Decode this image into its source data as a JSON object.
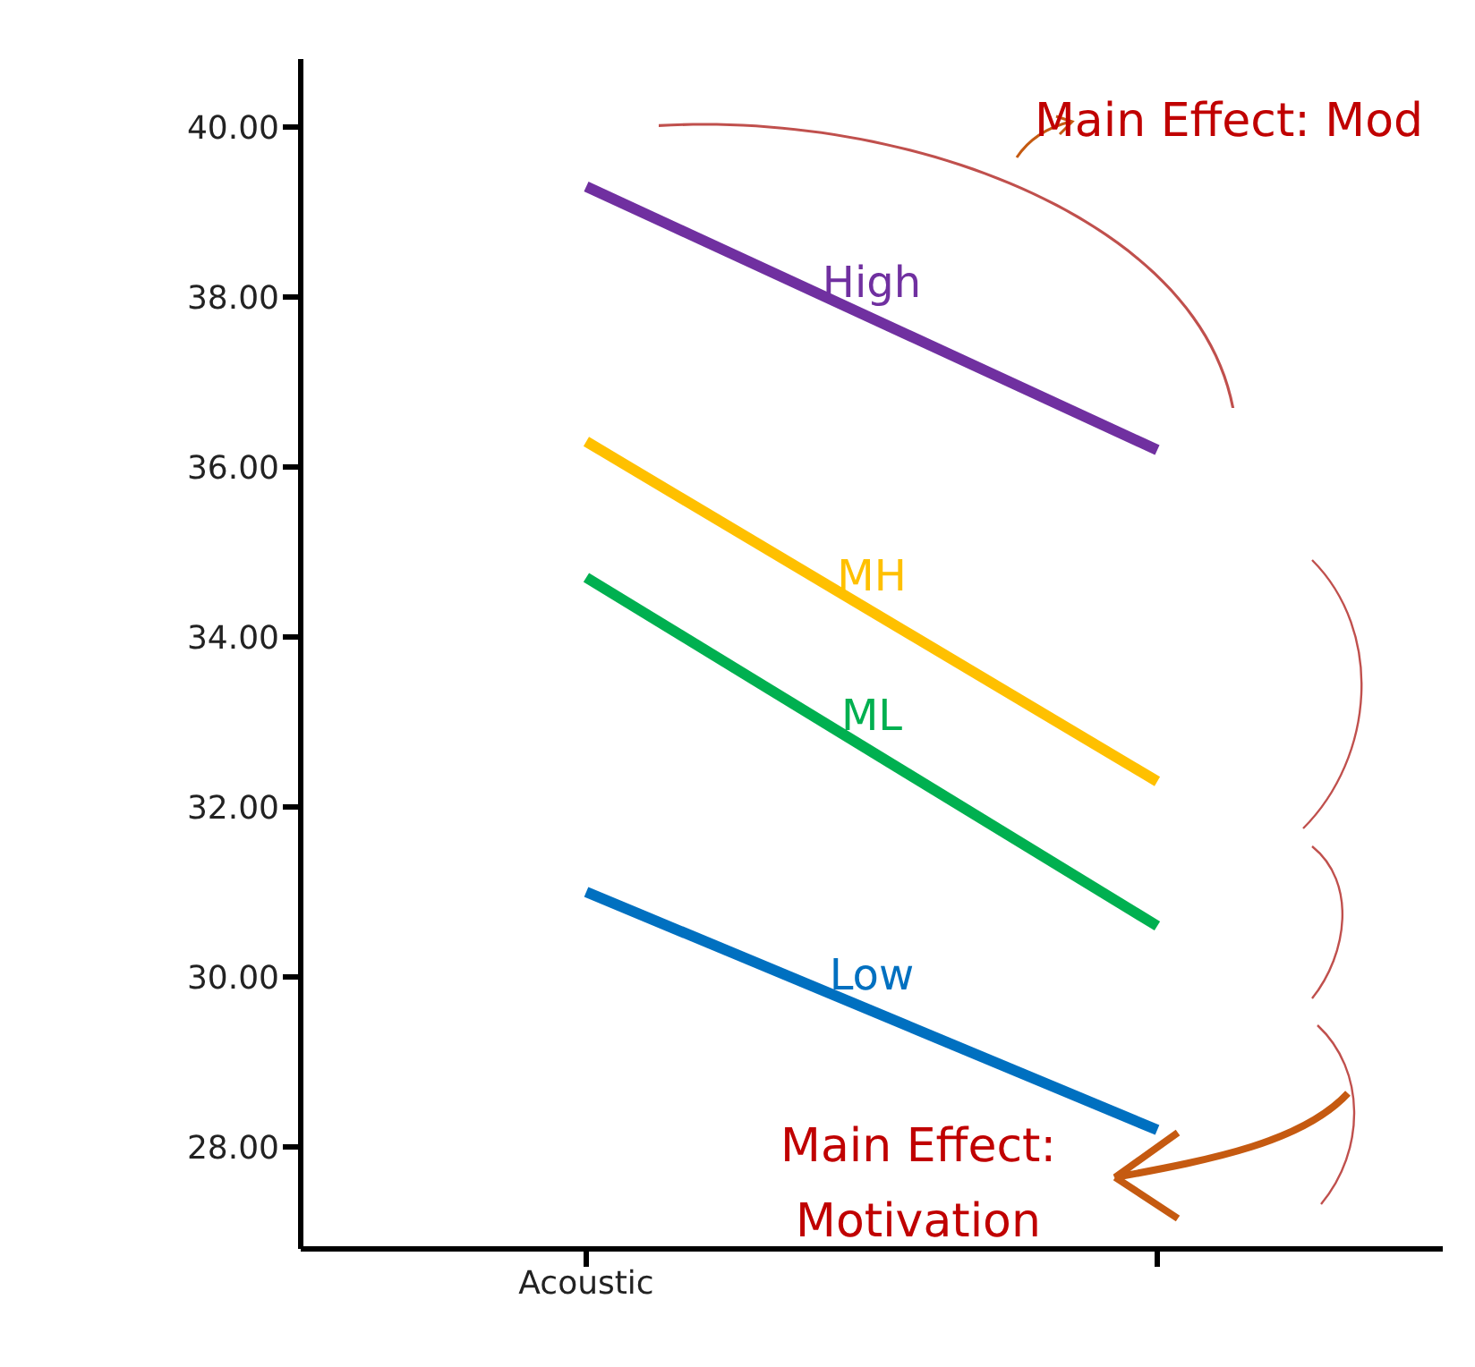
{
  "chart_data": {
    "type": "line",
    "categories": [
      "Acoustic",
      null
    ],
    "series": [
      {
        "name": "High",
        "color": "#7030a0",
        "values": [
          39.3,
          36.2
        ]
      },
      {
        "name": "MH",
        "color": "#ffc000",
        "values": [
          36.3,
          32.3
        ]
      },
      {
        "name": "ML",
        "color": "#00b050",
        "values": [
          34.7,
          30.6
        ]
      },
      {
        "name": "Low",
        "color": "#0070c0",
        "values": [
          31.0,
          28.2
        ]
      }
    ],
    "ylim": [
      26.8,
      40.8
    ],
    "yticks": [
      {
        "value": 28,
        "label": "28.00"
      },
      {
        "value": 30,
        "label": "30.00"
      },
      {
        "value": 32,
        "label": "32.00"
      },
      {
        "value": 34,
        "label": "34.00"
      },
      {
        "value": 36,
        "label": "36.00"
      },
      {
        "value": 38,
        "label": "38.00"
      },
      {
        "value": 40,
        "label": "40.00"
      }
    ],
    "annotations": [
      "Main Effect: Mod",
      "Main Effect: Motivation"
    ],
    "legend": false,
    "grid": false,
    "marker": "none",
    "line_style": "solid"
  }
}
